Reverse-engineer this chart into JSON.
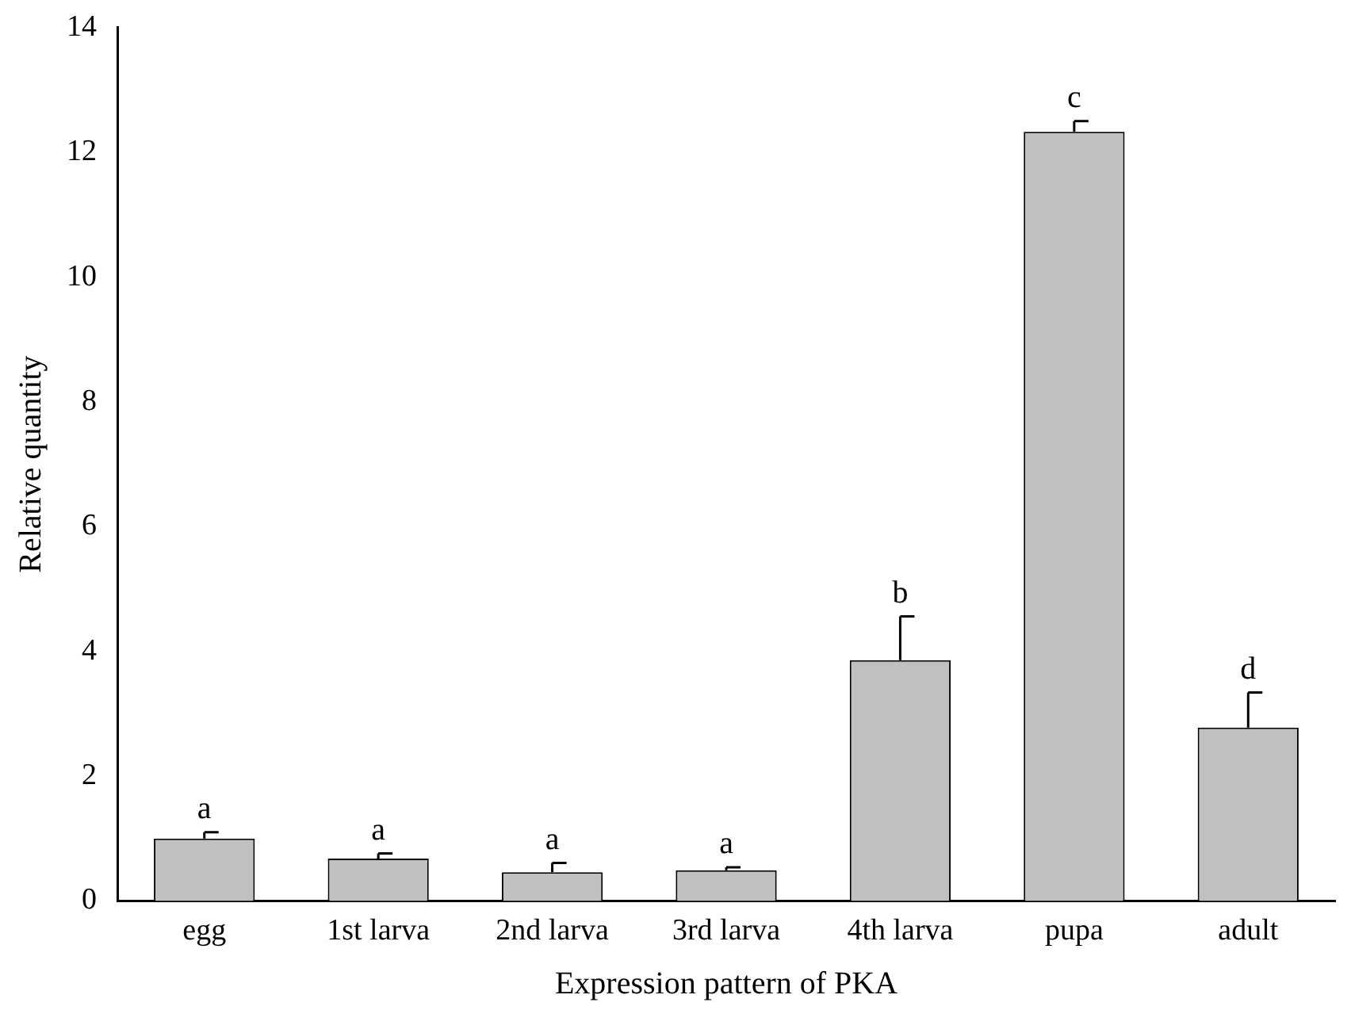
{
  "chart_data": {
    "type": "bar",
    "xlabel": "Expression pattern of PKA",
    "ylabel": "Relative quantity",
    "categories": [
      "egg",
      "1st larva",
      "2nd larva",
      "3rd larva",
      "4th larva",
      "pupa",
      "adult"
    ],
    "values": [
      1.0,
      0.68,
      0.46,
      0.49,
      3.86,
      12.33,
      2.78
    ],
    "errors": [
      [
        1.0,
        1.1
      ],
      [
        0.68,
        0.76
      ],
      [
        0.46,
        0.61
      ],
      [
        0.49,
        0.54
      ],
      [
        3.86,
        4.56
      ],
      [
        12.33,
        12.5
      ],
      [
        2.78,
        3.34
      ]
    ],
    "color": "#c0c0c0",
    "ylim": [
      0,
      14
    ],
    "yticks": [
      0,
      2,
      4,
      6,
      8,
      10,
      12,
      14
    ],
    "grid": false,
    "annotations": [
      {
        "text": "a",
        "x": "egg",
        "y": 1.1
      },
      {
        "text": "a",
        "x": "1st larva",
        "y": 0.76
      },
      {
        "text": "a",
        "x": "2nd larva",
        "y": 0.61
      },
      {
        "text": "a",
        "x": "3rd larva",
        "y": 0.54
      },
      {
        "text": "b",
        "x": "4th larva",
        "y": 4.56
      },
      {
        "text": "c",
        "x": "pupa",
        "y": 12.5
      },
      {
        "text": "d",
        "x": "adult",
        "y": 3.34
      }
    ]
  }
}
